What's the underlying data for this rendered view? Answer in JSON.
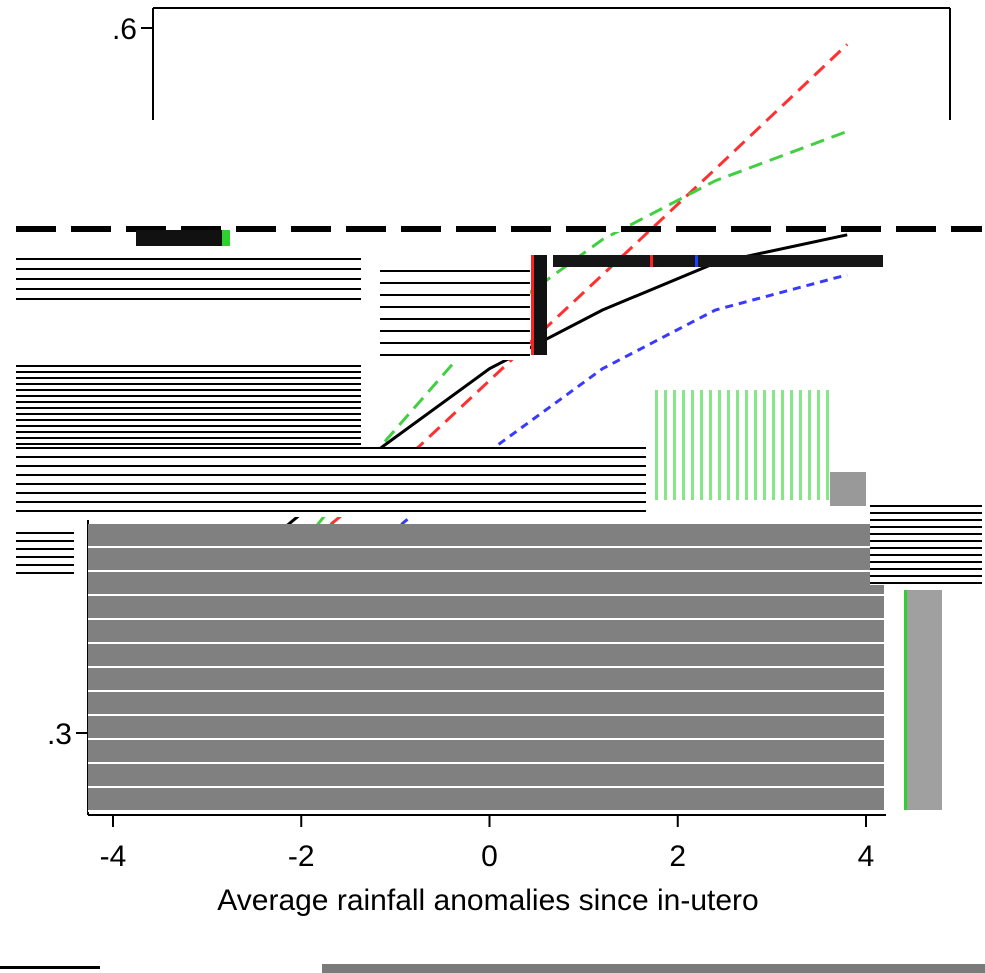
{
  "chart_data": {
    "type": "line",
    "title": "",
    "xlabel": "Average rainfall anomalies since in-utero",
    "ylabel": "",
    "xlim": [
      -4.2,
      4.2
    ],
    "ylim": [
      0.27,
      0.62
    ],
    "x_ticks": [
      -4,
      -2,
      0,
      2,
      4
    ],
    "x_tick_labels": [
      "-4",
      "-2",
      "0",
      "2",
      "4"
    ],
    "y_ticks": [
      0.3,
      0.6
    ],
    "y_tick_labels": [
      ".3",
      ".6"
    ],
    "grid": false,
    "legend": "none",
    "series": [
      {
        "color": "#ff3030",
        "dash": "long",
        "x": [
          -3.6,
          -2.4,
          -1.2,
          0.0,
          1.2,
          2.4,
          3.8
        ],
        "y": [
          0.32,
          0.365,
          0.405,
          0.45,
          0.495,
          0.54,
          0.593
        ]
      },
      {
        "color": "#40d040",
        "dash": "long",
        "x": [
          -3.6,
          -2.4,
          -1.2,
          0.0,
          1.2,
          2.4,
          3.8
        ],
        "y": [
          0.3,
          0.36,
          0.42,
          0.475,
          0.51,
          0.535,
          0.556
        ]
      },
      {
        "color": "#3a3aff",
        "dash": "short",
        "x": [
          -3.6,
          -2.4,
          -1.2,
          0.0,
          1.2,
          2.4,
          3.8
        ],
        "y": [
          0.285,
          0.33,
          0.38,
          0.42,
          0.455,
          0.48,
          0.495
        ]
      },
      {
        "color": "#000000",
        "dash": "solid",
        "x": [
          -3.6,
          -3.0,
          -2.4,
          -1.2,
          0.0,
          1.2,
          2.4,
          3.8
        ],
        "y": [
          0.32,
          0.345,
          0.38,
          0.42,
          0.455,
          0.48,
          0.5,
          0.512
        ]
      }
    ]
  }
}
